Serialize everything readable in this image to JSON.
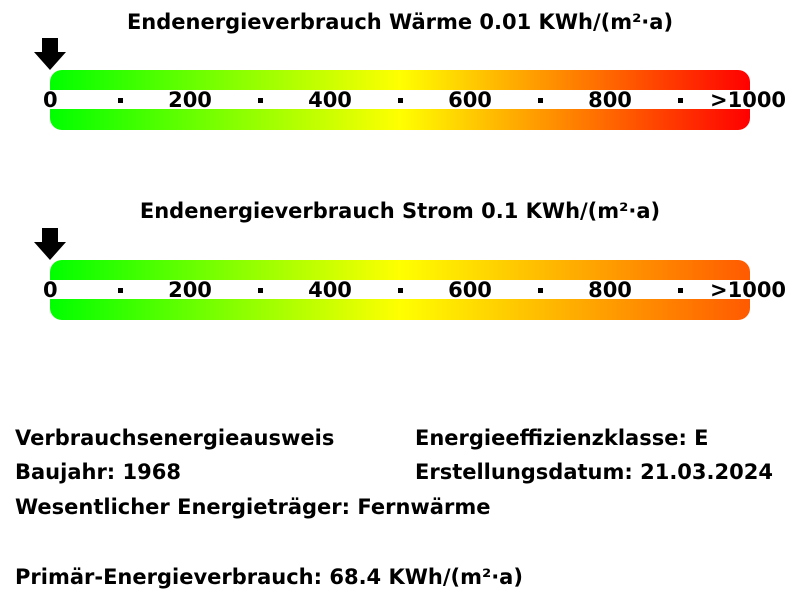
{
  "scales": [
    {
      "title": "Endenergieverbrauch Wärme 0.01 KWh/(m²·a)",
      "value": 0.01,
      "colors": [
        "#00ff00",
        "#ffff00",
        "#ff0000"
      ],
      "ticks": [
        "0",
        "200",
        "400",
        "600",
        "800",
        ">1000"
      ]
    },
    {
      "title": "Endenergieverbrauch Strom 0.1 KWh/(m²·a)",
      "value": 0.1,
      "colors": [
        "#00ff00",
        "#ffff00",
        "#ff5a00"
      ],
      "ticks": [
        "0",
        "200",
        "400",
        "600",
        "800",
        ">1000"
      ]
    }
  ],
  "scale_range": [
    0,
    1000
  ],
  "marker_icon": "arrow-down-icon",
  "info": {
    "ausweis_typ": "Verbrauchsenergieausweis",
    "effizienzklasse": "Energieeffizienzklasse: E",
    "baujahr": "Baujahr: 1968",
    "erstellungsdatum": "Erstellungsdatum: 21.03.2024",
    "energietraeger": "Wesentlicher Energieträger: Fernwärme",
    "primaerenergie": "Primär-Energieverbrauch: 68.4 KWh/(m²·a)"
  }
}
